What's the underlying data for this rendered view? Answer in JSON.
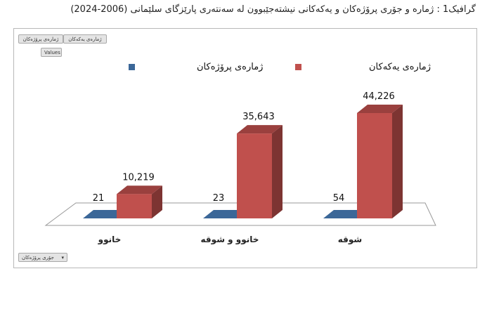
{
  "title": "گرافیک1 :  ژماره و جۆری پرۆژەکان و یەکەکانی نیشتەجێبوون لە سەنتەری پارێزگای سلێمانی (2006-2024)",
  "controls": {
    "field_button_1": "ژمارەی پرۆژەکان",
    "field_button_2": "ژمارەی یەکەکان",
    "values_button": "Values",
    "category_filter": "جۆری پرۆژەکان",
    "filter_arrow": "▾"
  },
  "chart_data": {
    "type": "bar",
    "categories": [
      "خانوو",
      "خانوو و شوقە",
      "شوقە"
    ],
    "series": [
      {
        "name": "ژمارەی پرۆژەکان",
        "values": [
          21,
          23,
          54
        ],
        "labels": [
          "21",
          "23",
          "54"
        ],
        "color": "#3b6798"
      },
      {
        "name": "ژمارەی یەکەکان",
        "values": [
          10219,
          35643,
          44226
        ],
        "labels": [
          "10,219",
          "35,643",
          "44,226"
        ],
        "color": "#c0504d"
      }
    ],
    "ylim": [
      0,
      50000
    ],
    "grid": false,
    "legend_position": "top",
    "style": "3d-column"
  }
}
